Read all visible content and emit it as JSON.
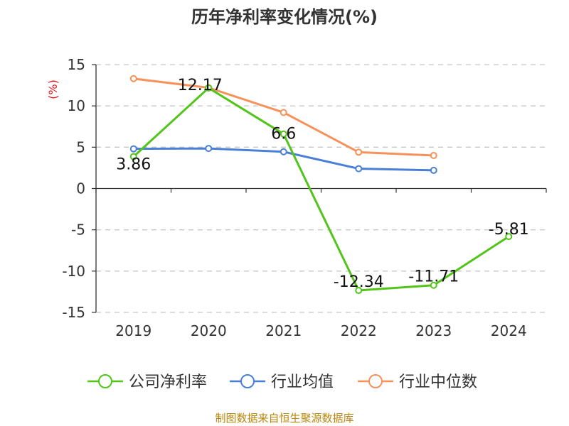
{
  "chart_data": {
    "type": "line",
    "title": "历年净利率变化情况(%)",
    "ylabel": "(%)",
    "xlabel": "",
    "categories": [
      "2019",
      "2020",
      "2021",
      "2022",
      "2023",
      "2024"
    ],
    "ylim": [
      -15,
      15
    ],
    "yticks": [
      15,
      10,
      5,
      0,
      -5,
      -10,
      -15
    ],
    "grid": true,
    "legend_position": "bottom",
    "series": [
      {
        "name": "公司净利率",
        "color": "#52c41a",
        "values": [
          3.86,
          12.17,
          6.6,
          -12.34,
          -11.71,
          -5.81
        ],
        "labels": [
          "3.86",
          "12.17",
          "6.6",
          "-12.34",
          "-11.71",
          "-5.81"
        ]
      },
      {
        "name": "行业均值",
        "color": "#4a7fd8",
        "values": [
          4.8,
          4.85,
          4.45,
          2.4,
          2.2,
          null
        ]
      },
      {
        "name": "行业中位数",
        "color": "#f7915a",
        "values": [
          13.3,
          12.2,
          9.2,
          4.4,
          4.0,
          null
        ]
      }
    ]
  },
  "source": "制图数据来自恒生聚源数据库"
}
